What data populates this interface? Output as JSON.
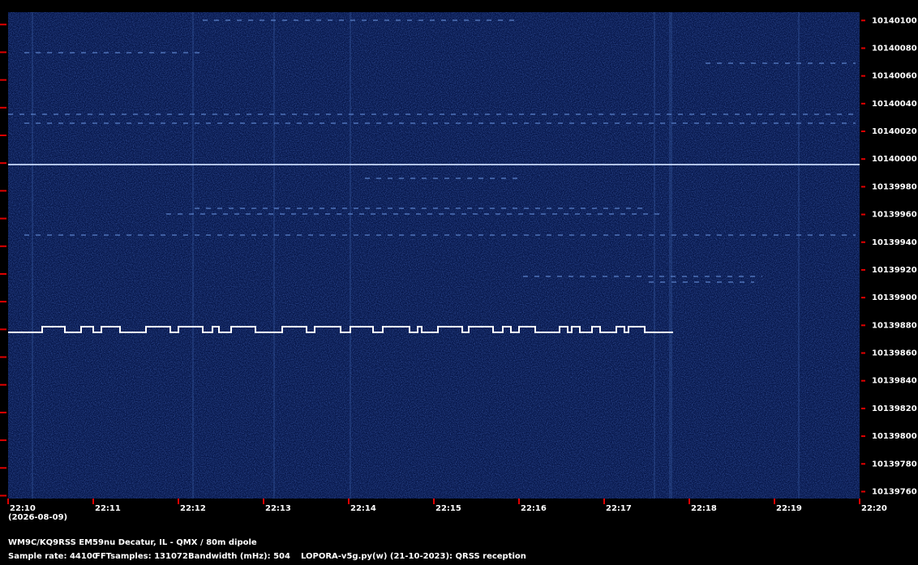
{
  "chart_data": {
    "type": "spectrogram",
    "xticks": [
      "22:10",
      "22:11",
      "22:12",
      "22:13",
      "22:14",
      "22:15",
      "22:16",
      "22:17",
      "22:18",
      "22:19",
      "22:20"
    ],
    "date": "(2026-08-09)",
    "ylim": [
      10139755,
      10140106
    ],
    "yticks": [
      10139760,
      10139780,
      10139800,
      10139820,
      10139840,
      10139860,
      10139880,
      10139900,
      10139920,
      10139940,
      10139960,
      10139980,
      10140000,
      10140020,
      10140040,
      10140060,
      10140080,
      10140100
    ],
    "tick_color": "#e00000",
    "station": "WM9C/KQ9RSS EM59nu Decatur, IL - QMX / 80m dipole",
    "sample_rate": "Sample rate: 44100",
    "fft_samples": "FFTsamples: 131072",
    "bandwidth": "Bandwidth (mHz): 504",
    "software": "LOPORA-v5g.py(w) (21-10-2023): QRSS reception"
  }
}
